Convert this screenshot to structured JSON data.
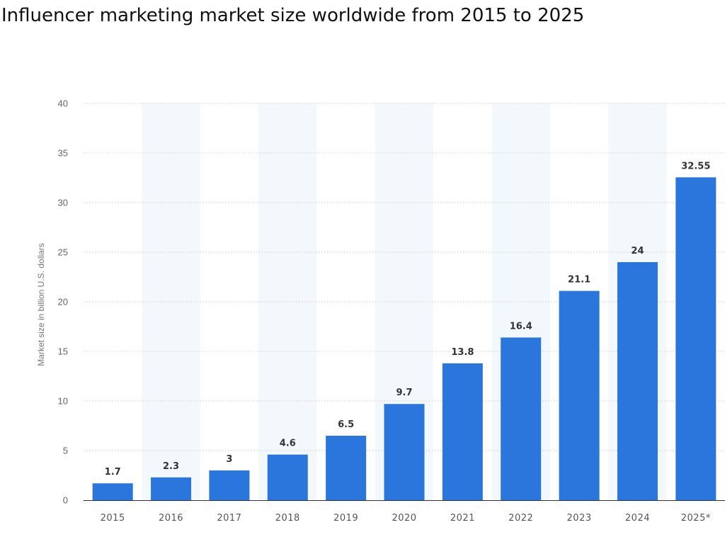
{
  "chart_data": {
    "type": "bar",
    "title": "Influencer marketing market size worldwide from 2015 to 2025",
    "xlabel": "",
    "ylabel": "Market size in billion U.S. dollars",
    "categories": [
      "2015",
      "2016",
      "2017",
      "2018",
      "2019",
      "2020",
      "2021",
      "2022",
      "2023",
      "2024",
      "2025*"
    ],
    "values": [
      1.7,
      2.3,
      3,
      4.6,
      6.5,
      9.7,
      13.8,
      16.4,
      21.1,
      24,
      32.55
    ],
    "value_labels": [
      "1.7",
      "2.3",
      "3",
      "4.6",
      "6.5",
      "9.7",
      "13.8",
      "16.4",
      "21.1",
      "24",
      "32.55"
    ],
    "ylim": [
      0,
      40
    ],
    "yticks": [
      0,
      5,
      10,
      15,
      20,
      25,
      30,
      35,
      40
    ],
    "grid": true,
    "legend": "none",
    "colors": {
      "bar": "#2a76dd",
      "band": "#f3f8fc",
      "grid": "#c9c9c9",
      "axis": "#333333"
    }
  }
}
